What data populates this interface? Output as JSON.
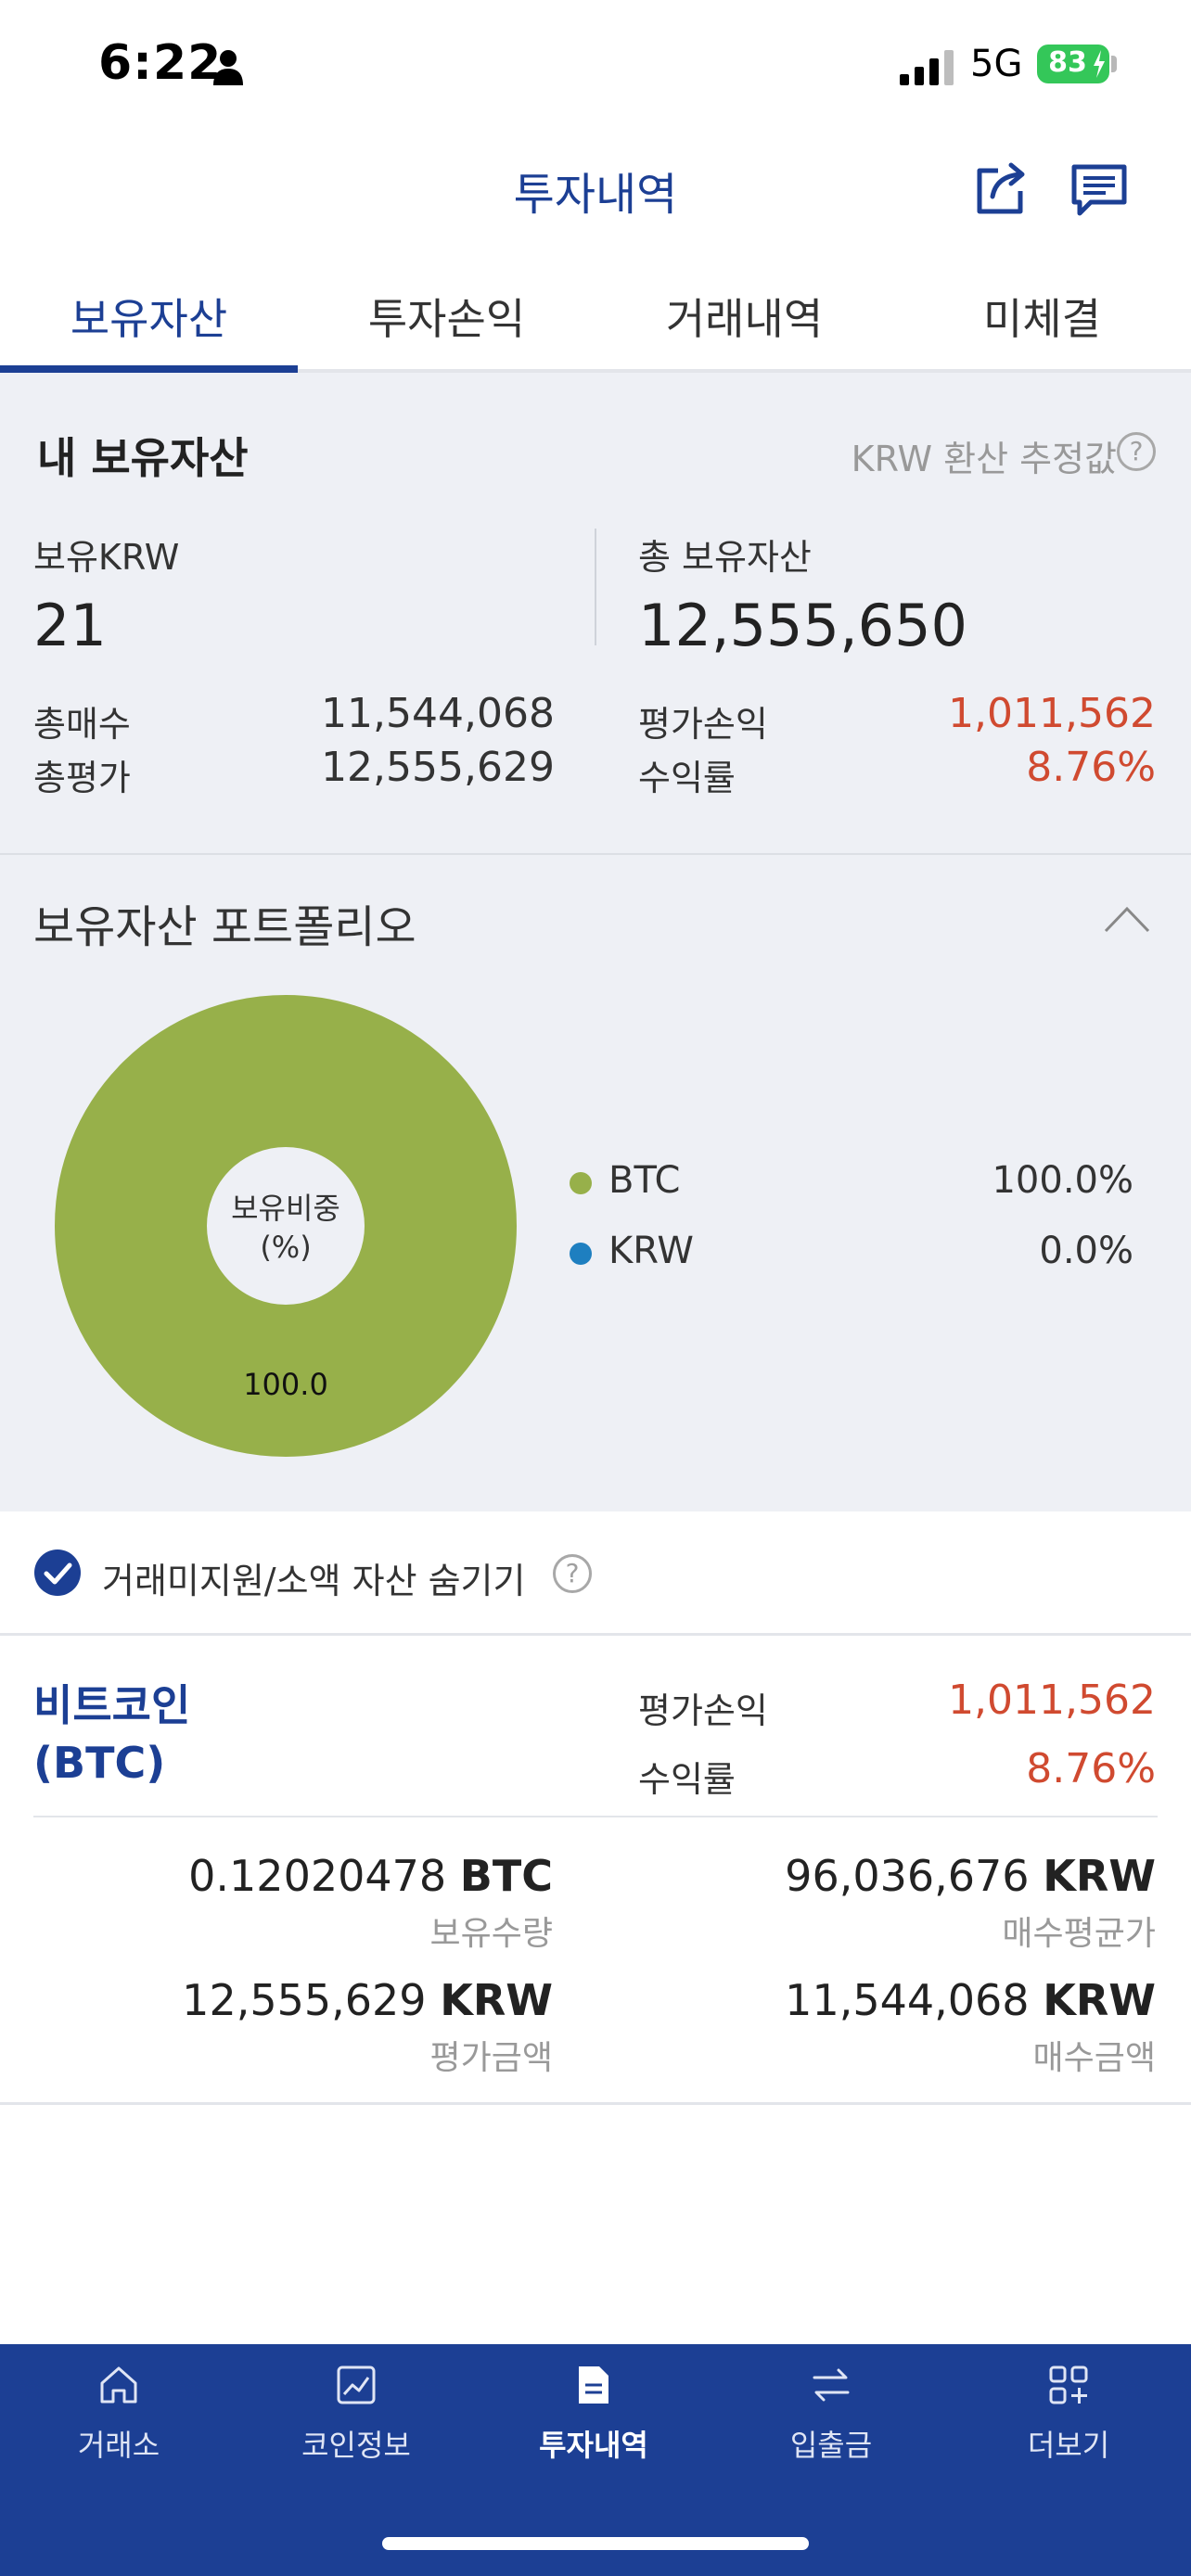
{
  "status_bar": {
    "time": "6:22",
    "network": "5G",
    "battery": "83"
  },
  "header": {
    "title": "투자내역"
  },
  "tabs": [
    {
      "label": "보유자산",
      "active": true
    },
    {
      "label": "투자손익",
      "active": false
    },
    {
      "label": "거래내역",
      "active": false
    },
    {
      "label": "미체결",
      "active": false
    }
  ],
  "summary": {
    "title": "내 보유자산",
    "note": "KRW 환산 추정값",
    "krw_label": "보유KRW",
    "krw_value": "21",
    "total_label": "총 보유자산",
    "total_value": "12,555,650",
    "total_buy_label": "총매수",
    "total_buy_value": "11,544,068",
    "total_eval_label": "총평가",
    "total_eval_value": "12,555,629",
    "pnl_label": "평가손익",
    "pnl_value": "1,011,562",
    "return_label": "수익률",
    "return_value": "8.76%"
  },
  "portfolio": {
    "title": "보유자산 포트폴리오",
    "center_label_1": "보유비중",
    "center_label_2": "(%)",
    "slice_label": "100.0",
    "legend": [
      {
        "name": "BTC",
        "pct": "100.0%",
        "color": "#97b04a"
      },
      {
        "name": "KRW",
        "pct": "0.0%",
        "color": "#1e7fc0"
      }
    ]
  },
  "filter": {
    "label": "거래미지원/소액 자산 숨기기",
    "checked": true
  },
  "asset": {
    "name_line1": "비트코인",
    "name_line2": "(BTC)",
    "pnl_label": "평가손익",
    "pnl_value": "1,011,562",
    "return_label": "수익률",
    "return_value": "8.76%",
    "quantity_value": "0.12020478",
    "quantity_unit": "BTC",
    "quantity_label": "보유수량",
    "avg_price_value": "96,036,676",
    "avg_price_unit": "KRW",
    "avg_price_label": "매수평균가",
    "eval_amount_value": "12,555,629",
    "eval_amount_unit": "KRW",
    "eval_amount_label": "평가금액",
    "buy_amount_value": "11,544,068",
    "buy_amount_unit": "KRW",
    "buy_amount_label": "매수금액"
  },
  "bottom_nav": [
    {
      "label": "거래소",
      "icon": "home-icon",
      "active": false
    },
    {
      "label": "코인정보",
      "icon": "chart-icon",
      "active": false
    },
    {
      "label": "투자내역",
      "icon": "document-icon",
      "active": true
    },
    {
      "label": "입출금",
      "icon": "transfer-icon",
      "active": false
    },
    {
      "label": "더보기",
      "icon": "more-icon",
      "active": false
    }
  ],
  "colors": {
    "brand": "#1c3f94",
    "loss_gain_red": "#d04a30",
    "panel_bg": "#eef0f5",
    "btc_green": "#97b04a",
    "krw_blue": "#1e7fc0"
  }
}
